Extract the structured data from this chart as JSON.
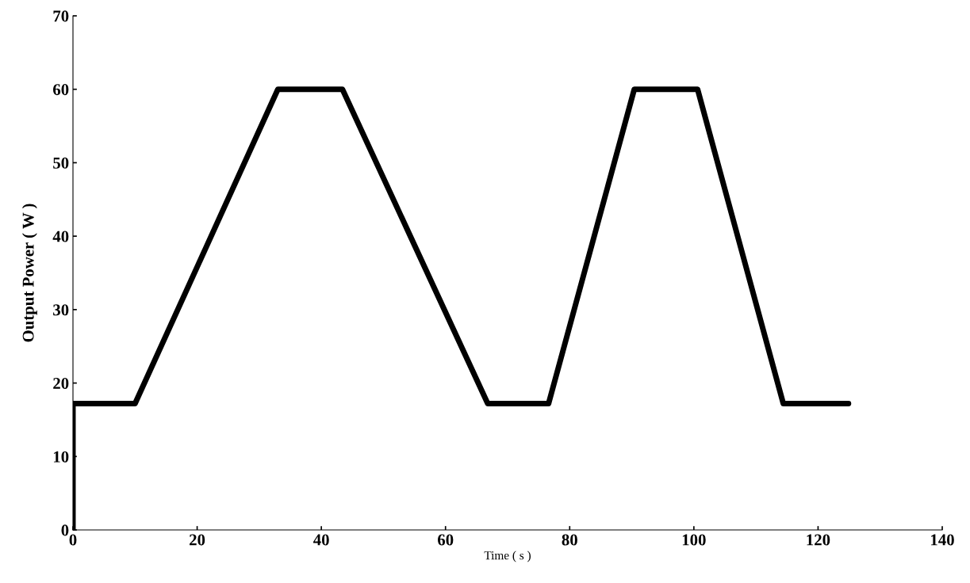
{
  "chart_data": {
    "type": "line",
    "xlabel": "Time ( s )",
    "ylabel": "Output Power ( W )",
    "series": [
      {
        "color": "#000000",
        "x": [
          0,
          0,
          10,
          33,
          43.4,
          66.8,
          76.6,
          90.4,
          100.6,
          114.4,
          124.9
        ],
        "values": [
          0,
          17.2,
          17.2,
          60,
          60,
          17.2,
          17.2,
          60,
          60,
          17.2,
          17.2
        ]
      }
    ],
    "xlim": [
      0,
      140
    ],
    "xticks": [
      0,
      20,
      40,
      60,
      80,
      100,
      120,
      140
    ],
    "ylim": [
      0,
      70
    ],
    "yticks": [
      0,
      10,
      20,
      30,
      40,
      50,
      60,
      70
    ],
    "grid": false,
    "legend": false,
    "marker": "none",
    "line_style": "solid"
  }
}
